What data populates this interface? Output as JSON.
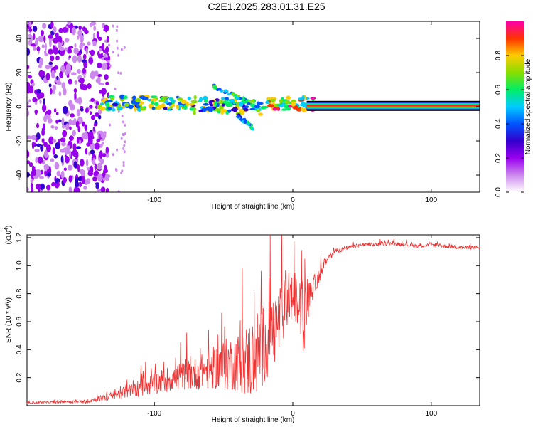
{
  "title": "C2E1.2025.283.01.31.E25",
  "chart_data": [
    {
      "type": "heatmap",
      "xlabel": "Height of straight line (km)",
      "ylabel": "Frequency (Hz)",
      "xlim": [
        -192,
        135
      ],
      "ylim": [
        -50,
        50
      ],
      "xticks": [
        -100,
        0,
        100
      ],
      "yticks": [
        -40,
        -20,
        0,
        20,
        40
      ],
      "colorbar": {
        "label": "Normalized spectral amplitude",
        "range": [
          0,
          1
        ],
        "ticks": [
          "0.0",
          "0.2",
          "0.4",
          "0.6",
          "0.8"
        ],
        "colors": [
          "#ffffff",
          "#cc88ee",
          "#9900ee",
          "#3300cc",
          "#0055ff",
          "#00ccff",
          "#00ee66",
          "#88dd00",
          "#ffcc00",
          "#ff3300",
          "#ff00aa"
        ]
      },
      "features": {
        "noise_region_km": [
          -192,
          -133
        ],
        "carrier_band": {
          "x_start_km": -140,
          "x_end_km": 15,
          "freq_center_hz": 2,
          "freq_halfwidth_hz": 4
        },
        "upper_branch": {
          "x_km": [
            -57,
            -30
          ],
          "freq_hz": [
            12,
            2
          ]
        },
        "lower_branch": {
          "x_km": [
            -40,
            -28
          ],
          "freq_hz": [
            -5,
            -13
          ]
        },
        "saturated_line": {
          "x_start_km": 10,
          "x_end_km": 135,
          "freq_hz": 0.5
        }
      }
    },
    {
      "type": "line",
      "xlabel": "Height of straight line (km)",
      "ylabel": "SNR (10 * v/v)",
      "y_multiplier": "(x10^4)",
      "multiplier_base": "(x10",
      "multiplier_exp": "4",
      "multiplier_close": ")",
      "xlim": [
        -192,
        135
      ],
      "ylim": [
        0,
        1.22
      ],
      "xticks": [
        -100,
        0,
        100
      ],
      "yticks": [
        "0.2",
        "0.4",
        "0.6",
        "0.8",
        "1.0",
        "1.2"
      ],
      "series": [
        {
          "name": "SNR",
          "color": "#ee3333",
          "x": [
            -192,
            -170,
            -150,
            -140,
            -130,
            -120,
            -110,
            -100,
            -90,
            -80,
            -70,
            -60,
            -50,
            -40,
            -30,
            -25,
            -20,
            -15,
            -10,
            -5,
            0,
            5,
            8,
            10,
            12,
            15,
            20,
            25,
            30,
            40,
            50,
            60,
            70,
            80,
            90,
            100,
            110,
            120,
            135
          ],
          "y": [
            0.02,
            0.025,
            0.03,
            0.05,
            0.07,
            0.1,
            0.13,
            0.16,
            0.19,
            0.21,
            0.23,
            0.26,
            0.29,
            0.31,
            0.33,
            0.38,
            0.45,
            0.52,
            0.6,
            0.72,
            0.78,
            0.7,
            0.62,
            0.72,
            0.8,
            0.85,
            0.95,
            1.05,
            1.1,
            1.13,
            1.15,
            1.15,
            1.16,
            1.15,
            1.14,
            1.15,
            1.14,
            1.13,
            1.13
          ],
          "spike_amplitude_max": [
            0.01,
            0.01,
            0.02,
            0.03,
            0.05,
            0.07,
            0.1,
            0.12,
            0.14,
            0.15,
            0.18,
            0.22,
            0.28,
            0.32,
            0.45,
            0.5,
            0.45,
            0.4,
            0.4,
            0.3,
            0.25,
            0.3,
            0.4,
            0.3,
            0.2,
            0.12,
            0.08,
            0.05,
            0.03,
            0.02,
            0.02,
            0.02,
            0.02,
            0.02,
            0.02,
            0.02,
            0.02,
            0.02,
            0.02
          ]
        }
      ]
    }
  ]
}
